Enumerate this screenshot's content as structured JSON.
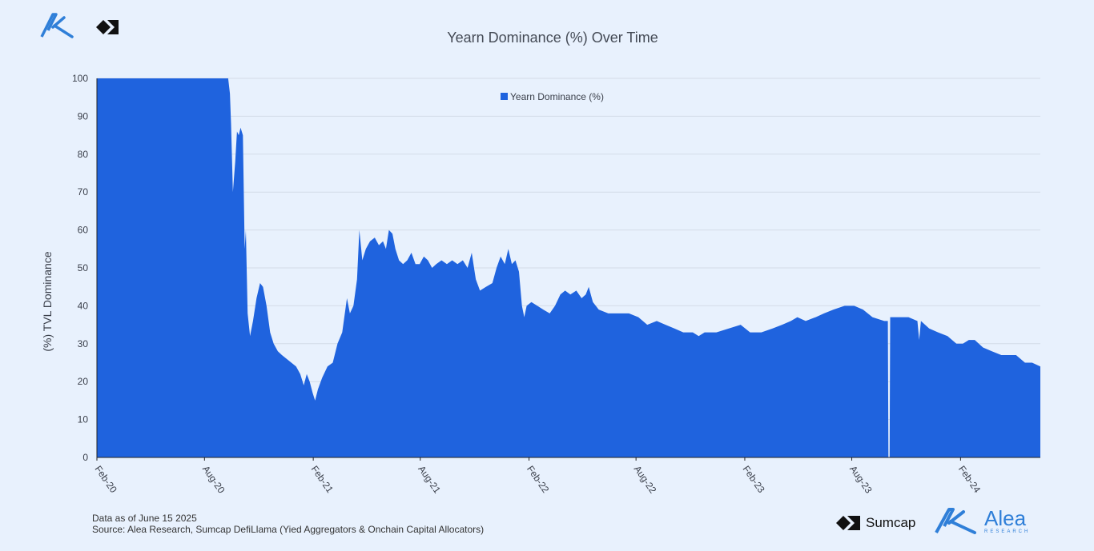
{
  "header": {
    "title": "Yearn Dominance (%) Over Time"
  },
  "logos": {
    "top_left_icon": "alea-logo-icon",
    "top_right_icon": "sumcap-logo-icon"
  },
  "footer": {
    "data_note": "Data as of June 15 2025",
    "source": "Source: Alea Research, Sumcap DefiLlama (Yied Aggregators & Onchain Capital Allocators)"
  },
  "brands": {
    "sumcap": "Sumcap",
    "alea": "Alea",
    "alea_sub": "RESEARCH"
  },
  "colors": {
    "background": "#e8f1fd",
    "series": "#1f63de",
    "grid": "#d3dce8",
    "alea_blue": "#2f7fd8"
  },
  "chart_data": {
    "type": "area",
    "title": "Yearn Dominance (%) Over Time",
    "xlabel": "",
    "ylabel": "(%)  TVL  Dominance",
    "ylim": [
      0,
      100
    ],
    "yticks": [
      0,
      10,
      20,
      30,
      40,
      50,
      60,
      70,
      80,
      90,
      100
    ],
    "xlim": [
      "2020-02-01",
      "2024-06-15"
    ],
    "xticks": [
      {
        "date": "2020-02-01",
        "label": "Feb-20"
      },
      {
        "date": "2020-08-01",
        "label": "Aug-20"
      },
      {
        "date": "2021-02-01",
        "label": "Feb-21"
      },
      {
        "date": "2021-08-01",
        "label": "Aug-21"
      },
      {
        "date": "2022-02-01",
        "label": "Feb-22"
      },
      {
        "date": "2022-08-01",
        "label": "Aug-22"
      },
      {
        "date": "2023-02-01",
        "label": "Feb-23"
      },
      {
        "date": "2023-08-01",
        "label": "Aug-23"
      },
      {
        "date": "2024-02-01",
        "label": "Feb-24"
      }
    ],
    "grid": true,
    "legend": "top-center",
    "series": [
      {
        "name": "Yearn Dominance (%)",
        "color": "#1f63de",
        "points": [
          [
            "2020-02-01",
            100
          ],
          [
            "2020-04-01",
            100
          ],
          [
            "2020-06-01",
            100
          ],
          [
            "2020-08-01",
            100
          ],
          [
            "2020-09-10",
            100
          ],
          [
            "2020-09-13",
            96
          ],
          [
            "2020-09-15",
            88
          ],
          [
            "2020-09-18",
            70
          ],
          [
            "2020-09-22",
            78
          ],
          [
            "2020-09-25",
            86
          ],
          [
            "2020-09-28",
            85
          ],
          [
            "2020-10-01",
            87
          ],
          [
            "2020-10-05",
            85
          ],
          [
            "2020-10-08",
            55
          ],
          [
            "2020-10-10",
            60
          ],
          [
            "2020-10-13",
            38
          ],
          [
            "2020-10-17",
            32
          ],
          [
            "2020-10-22",
            36
          ],
          [
            "2020-10-28",
            42
          ],
          [
            "2020-11-03",
            46
          ],
          [
            "2020-11-08",
            45
          ],
          [
            "2020-11-14",
            40
          ],
          [
            "2020-11-20",
            33
          ],
          [
            "2020-11-26",
            30
          ],
          [
            "2020-12-03",
            28
          ],
          [
            "2020-12-10",
            27
          ],
          [
            "2020-12-18",
            26
          ],
          [
            "2020-12-26",
            25
          ],
          [
            "2021-01-03",
            24
          ],
          [
            "2021-01-10",
            22
          ],
          [
            "2021-01-16",
            19
          ],
          [
            "2021-01-21",
            22
          ],
          [
            "2021-01-26",
            20
          ],
          [
            "2021-01-31",
            17
          ],
          [
            "2021-02-04",
            15
          ],
          [
            "2021-02-09",
            18
          ],
          [
            "2021-02-16",
            21
          ],
          [
            "2021-02-25",
            24
          ],
          [
            "2021-03-06",
            25
          ],
          [
            "2021-03-14",
            30
          ],
          [
            "2021-03-22",
            33
          ],
          [
            "2021-03-30",
            42
          ],
          [
            "2021-04-04",
            38
          ],
          [
            "2021-04-10",
            40
          ],
          [
            "2021-04-16",
            47
          ],
          [
            "2021-04-20",
            60
          ],
          [
            "2021-04-25",
            52
          ],
          [
            "2021-05-01",
            55
          ],
          [
            "2021-05-08",
            57
          ],
          [
            "2021-05-16",
            58
          ],
          [
            "2021-05-23",
            56
          ],
          [
            "2021-05-30",
            57
          ],
          [
            "2021-06-04",
            55
          ],
          [
            "2021-06-09",
            60
          ],
          [
            "2021-06-15",
            59
          ],
          [
            "2021-06-20",
            55
          ],
          [
            "2021-06-26",
            52
          ],
          [
            "2021-07-03",
            51
          ],
          [
            "2021-07-10",
            52
          ],
          [
            "2021-07-17",
            54
          ],
          [
            "2021-07-24",
            51
          ],
          [
            "2021-07-31",
            51
          ],
          [
            "2021-08-07",
            53
          ],
          [
            "2021-08-14",
            52
          ],
          [
            "2021-08-21",
            50
          ],
          [
            "2021-08-28",
            51
          ],
          [
            "2021-09-06",
            52
          ],
          [
            "2021-09-15",
            51
          ],
          [
            "2021-09-24",
            52
          ],
          [
            "2021-10-03",
            51
          ],
          [
            "2021-10-12",
            52
          ],
          [
            "2021-10-20",
            50
          ],
          [
            "2021-10-27",
            54
          ],
          [
            "2021-11-03",
            47
          ],
          [
            "2021-11-10",
            44
          ],
          [
            "2021-11-20",
            45
          ],
          [
            "2021-12-01",
            46
          ],
          [
            "2021-12-08",
            50
          ],
          [
            "2021-12-15",
            53
          ],
          [
            "2021-12-22",
            51
          ],
          [
            "2021-12-28",
            55
          ],
          [
            "2022-01-03",
            51
          ],
          [
            "2022-01-09",
            52
          ],
          [
            "2022-01-15",
            49
          ],
          [
            "2022-01-20",
            40
          ],
          [
            "2022-01-24",
            37
          ],
          [
            "2022-01-28",
            40
          ],
          [
            "2022-02-05",
            41
          ],
          [
            "2022-02-15",
            40
          ],
          [
            "2022-02-25",
            39
          ],
          [
            "2022-03-08",
            38
          ],
          [
            "2022-03-17",
            40
          ],
          [
            "2022-03-26",
            43
          ],
          [
            "2022-04-03",
            44
          ],
          [
            "2022-04-12",
            43
          ],
          [
            "2022-04-22",
            44
          ],
          [
            "2022-05-01",
            42
          ],
          [
            "2022-05-08",
            43
          ],
          [
            "2022-05-13",
            45
          ],
          [
            "2022-05-20",
            41
          ],
          [
            "2022-05-30",
            39
          ],
          [
            "2022-06-15",
            38
          ],
          [
            "2022-07-01",
            38
          ],
          [
            "2022-07-20",
            38
          ],
          [
            "2022-08-05",
            37
          ],
          [
            "2022-08-20",
            35
          ],
          [
            "2022-09-05",
            36
          ],
          [
            "2022-09-20",
            35
          ],
          [
            "2022-10-05",
            34
          ],
          [
            "2022-10-20",
            33
          ],
          [
            "2022-11-05",
            33
          ],
          [
            "2022-11-15",
            32
          ],
          [
            "2022-11-25",
            33
          ],
          [
            "2022-12-15",
            33
          ],
          [
            "2023-01-05",
            34
          ],
          [
            "2023-01-25",
            35
          ],
          [
            "2023-02-10",
            33
          ],
          [
            "2023-03-01",
            33
          ],
          [
            "2023-03-20",
            34
          ],
          [
            "2023-04-05",
            35
          ],
          [
            "2023-04-20",
            36
          ],
          [
            "2023-05-01",
            37
          ],
          [
            "2023-05-15",
            36
          ],
          [
            "2023-06-01",
            37
          ],
          [
            "2023-06-15",
            38
          ],
          [
            "2023-07-01",
            39
          ],
          [
            "2023-07-20",
            40
          ],
          [
            "2023-08-05",
            40
          ],
          [
            "2023-08-20",
            39
          ],
          [
            "2023-09-05",
            37
          ],
          [
            "2023-09-25",
            36
          ],
          [
            "2023-10-01",
            36
          ],
          [
            "2023-10-02",
            0
          ],
          [
            "2023-10-04",
            0
          ],
          [
            "2023-10-05",
            37
          ],
          [
            "2023-10-20",
            37
          ],
          [
            "2023-11-05",
            37
          ],
          [
            "2023-11-20",
            36
          ],
          [
            "2023-11-23",
            31
          ],
          [
            "2023-11-26",
            36
          ],
          [
            "2023-12-10",
            34
          ],
          [
            "2023-12-25",
            33
          ],
          [
            "2024-01-10",
            32
          ],
          [
            "2024-01-25",
            30
          ],
          [
            "2024-02-05",
            30
          ],
          [
            "2024-02-15",
            31
          ],
          [
            "2024-02-25",
            31
          ],
          [
            "2024-03-10",
            29
          ],
          [
            "2024-03-25",
            28
          ],
          [
            "2024-04-10",
            27
          ],
          [
            "2024-04-25",
            27
          ],
          [
            "2024-05-05",
            27
          ],
          [
            "2024-05-20",
            25
          ],
          [
            "2024-06-01",
            25
          ],
          [
            "2024-06-15",
            24
          ]
        ]
      }
    ]
  }
}
